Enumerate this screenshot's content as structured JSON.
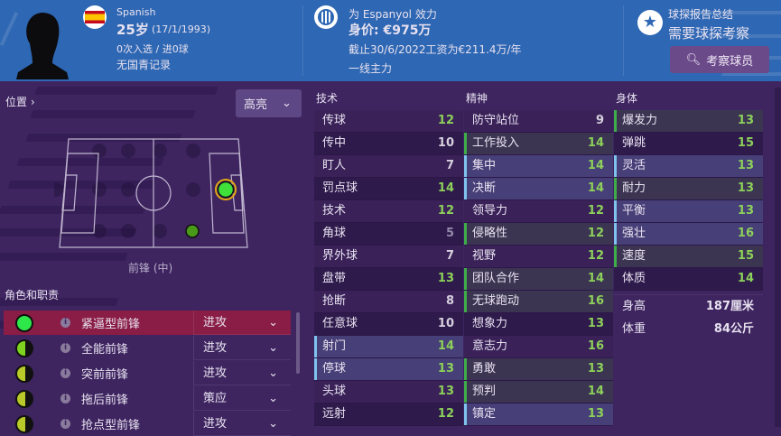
{
  "header": {
    "nationality": "Spanish",
    "age": "25岁",
    "dob": "(17/1/1993)",
    "caps": "0次入选 / 进0球",
    "youth": "无国青记录",
    "club_line": "为 Espanyol 效力",
    "value": "身价: €975万",
    "contract": "截止30/6/2022工资为€211.4万/年",
    "squad_status": "一线主力",
    "scout_title": "球探报告总结",
    "scout_status": "需要球探考察",
    "scout_button": "考察球员"
  },
  "colors": {
    "header": "#2e67b3",
    "body": "#3e2560",
    "good": "#8dd05a",
    "preferred_border": "#3fae4a",
    "key_border": "#7fc3ee",
    "selected_role": "#8a1d45"
  },
  "position": {
    "label": "位置",
    "highlight": "高亮",
    "caption": "前锋 (中)"
  },
  "roles": {
    "title": "角色和职责",
    "items": [
      {
        "name": "紧逼型前锋",
        "duty": "进攻",
        "icon": "full",
        "color": "#2ee84a",
        "selected": true
      },
      {
        "name": "全能前锋",
        "duty": "进攻",
        "icon": "half",
        "color": "#7ed321"
      },
      {
        "name": "突前前锋",
        "duty": "进攻",
        "icon": "half",
        "color": "#b9c92a"
      },
      {
        "name": "拖后前锋",
        "duty": "策应",
        "icon": "half",
        "color": "#b9c92a"
      },
      {
        "name": "抢点型前锋",
        "duty": "进攻",
        "icon": "half",
        "color": "#b9c92a"
      }
    ]
  },
  "attributes": {
    "technical": {
      "title": "技术",
      "items": [
        {
          "name": "传球",
          "value": 12
        },
        {
          "name": "传中",
          "value": 10
        },
        {
          "name": "盯人",
          "value": 7
        },
        {
          "name": "罚点球",
          "value": 14
        },
        {
          "name": "技术",
          "value": 12
        },
        {
          "name": "角球",
          "value": 5
        },
        {
          "name": "界外球",
          "value": 7
        },
        {
          "name": "盘带",
          "value": 13
        },
        {
          "name": "抢断",
          "value": 8
        },
        {
          "name": "任意球",
          "value": 10
        },
        {
          "name": "射门",
          "value": 14,
          "mark": "key"
        },
        {
          "name": "停球",
          "value": 13,
          "mark": "key"
        },
        {
          "name": "头球",
          "value": 13
        },
        {
          "name": "远射",
          "value": 12
        }
      ]
    },
    "mental": {
      "title": "精神",
      "items": [
        {
          "name": "防守站位",
          "value": 9
        },
        {
          "name": "工作投入",
          "value": 14,
          "mark": "pref"
        },
        {
          "name": "集中",
          "value": 14,
          "mark": "key"
        },
        {
          "name": "决断",
          "value": 14,
          "mark": "key"
        },
        {
          "name": "领导力",
          "value": 12
        },
        {
          "name": "侵略性",
          "value": 12,
          "mark": "pref"
        },
        {
          "name": "视野",
          "value": 12
        },
        {
          "name": "团队合作",
          "value": 14,
          "mark": "pref"
        },
        {
          "name": "无球跑动",
          "value": 16,
          "mark": "pref"
        },
        {
          "name": "想象力",
          "value": 13
        },
        {
          "name": "意志力",
          "value": 16
        },
        {
          "name": "勇敢",
          "value": 13,
          "mark": "pref"
        },
        {
          "name": "预判",
          "value": 14,
          "mark": "pref"
        },
        {
          "name": "镇定",
          "value": 13,
          "mark": "key"
        }
      ]
    },
    "physical": {
      "title": "身体",
      "items": [
        {
          "name": "爆发力",
          "value": 13,
          "mark": "pref"
        },
        {
          "name": "弹跳",
          "value": 15
        },
        {
          "name": "灵活",
          "value": 13,
          "mark": "key"
        },
        {
          "name": "耐力",
          "value": 13,
          "mark": "pref"
        },
        {
          "name": "平衡",
          "value": 13,
          "mark": "key"
        },
        {
          "name": "强壮",
          "value": 16,
          "mark": "key"
        },
        {
          "name": "速度",
          "value": 15,
          "mark": "pref"
        },
        {
          "name": "体质",
          "value": 14
        }
      ],
      "height_label": "身高",
      "height": "187厘米",
      "weight_label": "体重",
      "weight": "84公斤"
    }
  }
}
